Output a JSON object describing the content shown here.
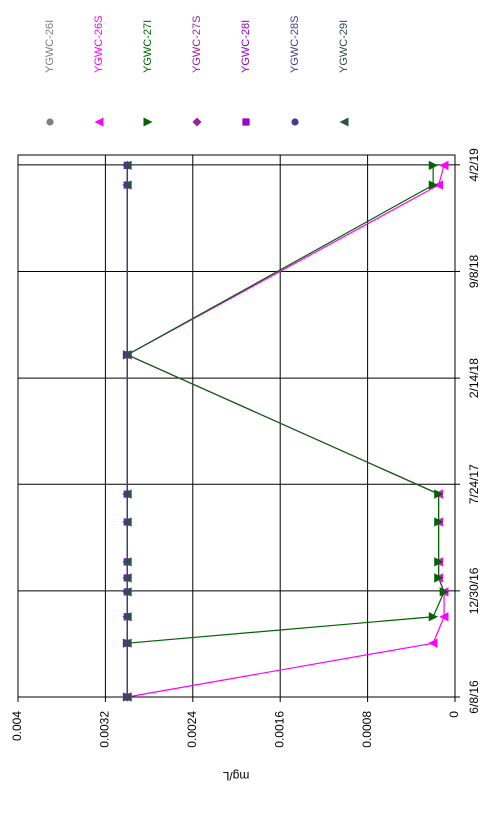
{
  "chart_data": {
    "type": "line",
    "y_label": "mg/L",
    "x": [
      "2016-06-08",
      "2016-09-20",
      "2016-11-10",
      "2016-12-28",
      "2017-01-24",
      "2017-02-24",
      "2017-05-12",
      "2017-07-05",
      "2018-03-31",
      "2019-02-22",
      "2019-04-01"
    ],
    "xlim": [
      "2016-06-08",
      "2019-04-21"
    ],
    "xticks": [
      {
        "value": "2016-06-08",
        "label": "6/8/16"
      },
      {
        "value": "2016-12-30",
        "label": "12/30/16"
      },
      {
        "value": "2017-07-24",
        "label": "7/24/17"
      },
      {
        "value": "2018-02-14",
        "label": "2/14/18"
      },
      {
        "value": "2018-09-08",
        "label": "9/8/18"
      },
      {
        "value": "2019-04-02",
        "label": "4/2/19"
      }
    ],
    "ylim": [
      0,
      0.004
    ],
    "yticks": [
      0,
      0.0008,
      0.0016,
      0.0024,
      0.0032,
      0.004
    ],
    "grid": true,
    "legend": "right",
    "series": [
      {
        "name": "YGWC-26I",
        "color": "#808080",
        "marker": "circle",
        "values": [
          0.003,
          0.003,
          0.003,
          0.003,
          0.003,
          0.003,
          0.003,
          0.003,
          0.003,
          0.003,
          0.003
        ]
      },
      {
        "name": "YGWC-26S",
        "color": "#ff00ff",
        "marker": "triangle-up",
        "values": [
          0.003,
          0.0002,
          0.0001,
          0.0001,
          0.00015,
          0.00015,
          0.00015,
          0.00015,
          0.003,
          0.00015,
          0.0001
        ]
      },
      {
        "name": "YGWC-27I",
        "color": "#006400",
        "marker": "triangle-down",
        "values": [
          0.003,
          0.003,
          0.0002,
          0.0001,
          0.00015,
          0.00015,
          0.00015,
          0.00015,
          0.003,
          0.0002,
          0.0002
        ]
      },
      {
        "name": "YGWC-27S",
        "color": "#99229a",
        "marker": "diamond",
        "values": [
          0.003,
          0.003,
          0.003,
          0.003,
          0.003,
          0.003,
          0.003,
          0.003,
          0.003,
          0.003,
          0.003
        ]
      },
      {
        "name": "YGWC-28I",
        "color": "#9900cc",
        "marker": "square",
        "values": [
          0.003,
          0.003,
          0.003,
          0.003,
          0.003,
          0.003,
          0.003,
          0.003,
          0.003,
          0.003,
          0.003
        ]
      },
      {
        "name": "YGWC-28S",
        "color": "#4b3b8f",
        "marker": "circle",
        "values": [
          0.003,
          0.003,
          0.003,
          0.003,
          0.003,
          0.003,
          0.003,
          0.003,
          0.003,
          0.003,
          0.003
        ]
      },
      {
        "name": "YGWC-29I",
        "color": "#2f4f4f",
        "marker": "triangle-up",
        "values": [
          0.003,
          0.003,
          0.003,
          0.003,
          0.003,
          0.003,
          0.003,
          0.003,
          0.003,
          0.003,
          0.003
        ]
      }
    ]
  }
}
